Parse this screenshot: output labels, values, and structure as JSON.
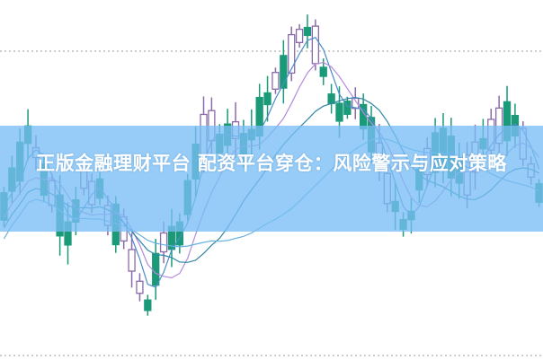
{
  "cover": {
    "title": "正版金融理财平台 配资平台穿仓：风险警示与应对策略"
  },
  "colors": {
    "down_candle": "#1a9a78",
    "up_candle": "#8a6aa8",
    "banner": "#8ccbf6",
    "ma_lines": [
      "#4a8cc8",
      "#b48ae0",
      "#2f86a8",
      "#66b0e0"
    ]
  },
  "chart_kind": "candlestick"
}
